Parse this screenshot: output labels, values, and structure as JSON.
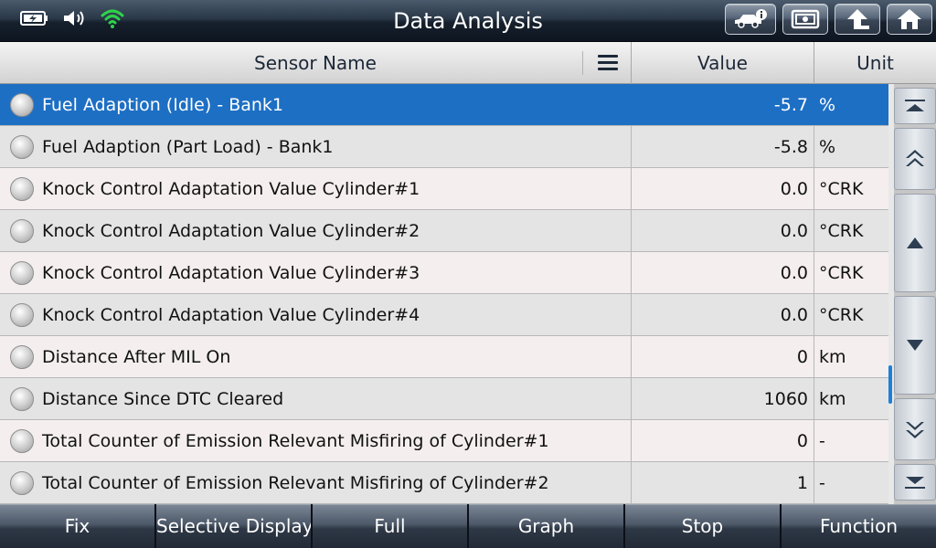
{
  "header": {
    "title": "Data Analysis",
    "status_icons": [
      "battery-charging-icon",
      "speaker-icon",
      "wifi-icon"
    ],
    "buttons": [
      "vehicle-info-icon",
      "screenshot-icon",
      "back-arrow-icon",
      "home-icon"
    ]
  },
  "table": {
    "columns": {
      "name": "Sensor Name",
      "value": "Value",
      "unit": "Unit"
    },
    "selected_index": 0,
    "rows": [
      {
        "name": "Fuel Adaption (Idle) - Bank1",
        "value": "-5.7",
        "unit": "%"
      },
      {
        "name": "Fuel Adaption (Part Load) - Bank1",
        "value": "-5.8",
        "unit": "%"
      },
      {
        "name": "Knock Control Adaptation Value Cylinder#1",
        "value": "0.0",
        "unit": "°CRK"
      },
      {
        "name": "Knock Control Adaptation Value Cylinder#2",
        "value": "0.0",
        "unit": "°CRK"
      },
      {
        "name": "Knock Control Adaptation Value Cylinder#3",
        "value": "0.0",
        "unit": "°CRK"
      },
      {
        "name": "Knock Control Adaptation Value Cylinder#4",
        "value": "0.0",
        "unit": "°CRK"
      },
      {
        "name": "Distance After MIL On",
        "value": "0",
        "unit": "km"
      },
      {
        "name": "Distance Since DTC Cleared",
        "value": "1060",
        "unit": "km"
      },
      {
        "name": "Total Counter of Emission Relevant Misfiring of Cylinder#1",
        "value": "0",
        "unit": "-"
      },
      {
        "name": "Total Counter of Emission Relevant Misfiring of Cylinder#2",
        "value": "1",
        "unit": "-"
      }
    ]
  },
  "scroll": {
    "buttons": [
      "scroll-top-icon",
      "page-up-icon",
      "line-up-icon",
      "line-down-icon",
      "page-down-icon",
      "scroll-bottom-icon"
    ],
    "accent": "#1e7fd6"
  },
  "footer": {
    "buttons": [
      "Fix",
      "Selective Display",
      "Full",
      "Graph",
      "Stop",
      "Function"
    ]
  },
  "colors": {
    "selected_row": "#1d6fc4",
    "wifi": "#2ed24a",
    "header_text": "#1c2838"
  }
}
